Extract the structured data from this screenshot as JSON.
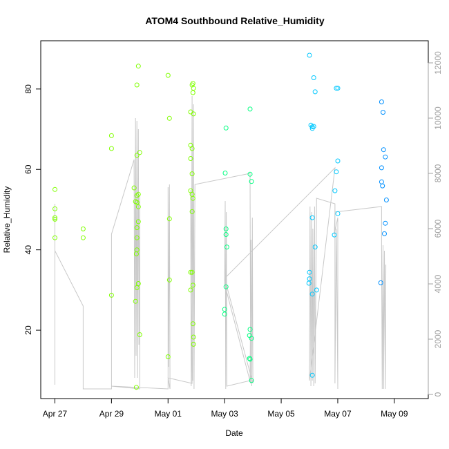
{
  "chart_data": {
    "type": "scatter",
    "title": "ATOM4 Southbound Relative_Humidity",
    "xlabel": "Date",
    "ylabel": "Relative_Humidity",
    "x_ticks": [
      "Apr 27",
      "Apr 29",
      "May 01",
      "May 03",
      "May 05",
      "May 07",
      "May 09"
    ],
    "x_tick_days": [
      0,
      2,
      4,
      6,
      8,
      10,
      12
    ],
    "xlim_days": [
      -0.5,
      13.2
    ],
    "y_ticks": [
      20,
      40,
      60,
      80
    ],
    "ylim": [
      3,
      92
    ],
    "y2_ticks": [
      "0",
      "2000",
      "4000",
      "6000",
      "8000",
      "10000",
      "12000"
    ],
    "y2_tick_values": [
      0,
      2000,
      4000,
      6000,
      8000,
      10000,
      12000
    ],
    "y2lim": [
      -150,
      12800
    ],
    "colors": {
      "points_early": "#80ff00",
      "points_mid": "#00ff80",
      "points_late": "#00c8ff",
      "points_end": "#0090ff",
      "background_line": "#c8c8c8"
    },
    "points": [
      {
        "x": 0.0,
        "y": 55.0
      },
      {
        "x": 0.0,
        "y": 50.2
      },
      {
        "x": 0.0,
        "y": 48.0
      },
      {
        "x": 0.0,
        "y": 47.6
      },
      {
        "x": 0.0,
        "y": 43.0
      },
      {
        "x": 1.0,
        "y": 45.2
      },
      {
        "x": 1.0,
        "y": 43.0
      },
      {
        "x": 2.0,
        "y": 68.4
      },
      {
        "x": 2.0,
        "y": 65.2
      },
      {
        "x": 2.0,
        "y": 28.7
      },
      {
        "x": 2.8,
        "y": 55.4
      },
      {
        "x": 2.85,
        "y": 52.0
      },
      {
        "x": 2.85,
        "y": 27.2
      },
      {
        "x": 2.88,
        "y": 39.0
      },
      {
        "x": 2.88,
        "y": 5.8
      },
      {
        "x": 2.9,
        "y": 81.0
      },
      {
        "x": 2.9,
        "y": 63.5
      },
      {
        "x": 2.9,
        "y": 53.5
      },
      {
        "x": 2.9,
        "y": 51.8
      },
      {
        "x": 2.9,
        "y": 45.5
      },
      {
        "x": 2.9,
        "y": 43.0
      },
      {
        "x": 2.9,
        "y": 40.0
      },
      {
        "x": 2.9,
        "y": 30.6
      },
      {
        "x": 2.95,
        "y": 85.7
      },
      {
        "x": 2.95,
        "y": 53.8
      },
      {
        "x": 2.95,
        "y": 50.7
      },
      {
        "x": 2.95,
        "y": 47.0
      },
      {
        "x": 2.95,
        "y": 31.6
      },
      {
        "x": 3.0,
        "y": 64.2
      },
      {
        "x": 3.0,
        "y": 18.9
      },
      {
        "x": 4.0,
        "y": 83.4
      },
      {
        "x": 4.05,
        "y": 72.7
      },
      {
        "x": 4.05,
        "y": 47.7
      },
      {
        "x": 4.05,
        "y": 32.5
      },
      {
        "x": 4.0,
        "y": 13.4
      },
      {
        "x": 4.8,
        "y": 74.3
      },
      {
        "x": 4.8,
        "y": 66.0
      },
      {
        "x": 4.8,
        "y": 62.7
      },
      {
        "x": 4.8,
        "y": 54.7
      },
      {
        "x": 4.8,
        "y": 34.4
      },
      {
        "x": 4.8,
        "y": 30.0
      },
      {
        "x": 4.85,
        "y": 81.0
      },
      {
        "x": 4.85,
        "y": 65.2
      },
      {
        "x": 4.85,
        "y": 58.9
      },
      {
        "x": 4.85,
        "y": 53.8
      },
      {
        "x": 4.85,
        "y": 49.5
      },
      {
        "x": 4.85,
        "y": 34.4
      },
      {
        "x": 4.88,
        "y": 81.4
      },
      {
        "x": 4.88,
        "y": 79.1
      },
      {
        "x": 4.88,
        "y": 52.8
      },
      {
        "x": 4.88,
        "y": 31.2
      },
      {
        "x": 4.88,
        "y": 21.6
      },
      {
        "x": 4.9,
        "y": 80.2
      },
      {
        "x": 4.9,
        "y": 73.8
      },
      {
        "x": 4.9,
        "y": 18.3
      },
      {
        "x": 4.9,
        "y": 16.5
      },
      {
        "x": 6.05,
        "y": 70.3
      },
      {
        "x": 6.02,
        "y": 59.1
      },
      {
        "x": 6.05,
        "y": 45.2
      },
      {
        "x": 6.05,
        "y": 43.8
      },
      {
        "x": 6.08,
        "y": 40.7
      },
      {
        "x": 6.05,
        "y": 30.8
      },
      {
        "x": 6.0,
        "y": 25.2
      },
      {
        "x": 6.0,
        "y": 24.0
      },
      {
        "x": 6.9,
        "y": 75.0
      },
      {
        "x": 6.9,
        "y": 58.8
      },
      {
        "x": 6.95,
        "y": 57.0
      },
      {
        "x": 6.9,
        "y": 20.2
      },
      {
        "x": 6.88,
        "y": 18.7
      },
      {
        "x": 6.95,
        "y": 18.0
      },
      {
        "x": 6.88,
        "y": 13.0
      },
      {
        "x": 6.9,
        "y": 12.8
      },
      {
        "x": 6.95,
        "y": 7.5
      },
      {
        "x": 9.0,
        "y": 88.4
      },
      {
        "x": 9.05,
        "y": 71.0
      },
      {
        "x": 9.1,
        "y": 70.6
      },
      {
        "x": 9.15,
        "y": 70.7
      },
      {
        "x": 9.1,
        "y": 70.2
      },
      {
        "x": 9.15,
        "y": 82.8
      },
      {
        "x": 9.2,
        "y": 79.3
      },
      {
        "x": 9.2,
        "y": 40.7
      },
      {
        "x": 9.25,
        "y": 30.0
      },
      {
        "x": 9.1,
        "y": 48.0
      },
      {
        "x": 9.0,
        "y": 34.4
      },
      {
        "x": 9.0,
        "y": 32.8
      },
      {
        "x": 8.98,
        "y": 31.7
      },
      {
        "x": 9.1,
        "y": 29.0
      },
      {
        "x": 9.1,
        "y": 8.8
      },
      {
        "x": 9.95,
        "y": 80.2
      },
      {
        "x": 10.0,
        "y": 80.2
      },
      {
        "x": 10.0,
        "y": 62.1
      },
      {
        "x": 9.95,
        "y": 59.4
      },
      {
        "x": 9.9,
        "y": 54.7
      },
      {
        "x": 10.0,
        "y": 49.0
      },
      {
        "x": 9.88,
        "y": 43.7
      },
      {
        "x": 11.55,
        "y": 76.8
      },
      {
        "x": 11.6,
        "y": 74.2
      },
      {
        "x": 11.62,
        "y": 64.9
      },
      {
        "x": 11.68,
        "y": 63.1
      },
      {
        "x": 11.55,
        "y": 60.4
      },
      {
        "x": 11.55,
        "y": 56.9
      },
      {
        "x": 11.58,
        "y": 55.9
      },
      {
        "x": 11.72,
        "y": 52.4
      },
      {
        "x": 11.68,
        "y": 46.6
      },
      {
        "x": 11.65,
        "y": 44.0
      },
      {
        "x": 11.52,
        "y": 31.8
      }
    ],
    "background_series": [
      {
        "x": 0.0,
        "y2": 6900
      },
      {
        "x": 0.0,
        "y2": 350
      },
      {
        "x": 0.0,
        "y2": 5200
      },
      {
        "x": 1.0,
        "y2": 3200
      },
      {
        "x": 1.0,
        "y2": 200
      },
      {
        "x": 2.0,
        "y2": 200
      },
      {
        "x": 2.0,
        "y2": 5800
      },
      {
        "x": 2.8,
        "y2": 8500
      },
      {
        "x": 2.82,
        "y2": 600
      },
      {
        "x": 2.85,
        "y2": 10000
      },
      {
        "x": 2.87,
        "y2": 1400
      },
      {
        "x": 2.9,
        "y2": 9900
      },
      {
        "x": 2.92,
        "y2": 600
      },
      {
        "x": 2.95,
        "y2": 9600
      },
      {
        "x": 2.97,
        "y2": 1800
      },
      {
        "x": 3.0,
        "y2": 7200
      },
      {
        "x": 3.0,
        "y2": 200
      },
      {
        "x": 2.0,
        "y2": 300
      },
      {
        "x": 4.0,
        "y2": 200
      },
      {
        "x": 4.0,
        "y2": 7500
      },
      {
        "x": 4.02,
        "y2": 1000
      },
      {
        "x": 4.05,
        "y2": 7600
      },
      {
        "x": 4.07,
        "y2": 200
      },
      {
        "x": 4.0,
        "y2": 600
      },
      {
        "x": 4.85,
        "y2": 400
      },
      {
        "x": 4.8,
        "y2": 7400
      },
      {
        "x": 4.82,
        "y2": 300
      },
      {
        "x": 4.85,
        "y2": 10800
      },
      {
        "x": 4.87,
        "y2": 500
      },
      {
        "x": 4.9,
        "y2": 10500
      },
      {
        "x": 4.92,
        "y2": 200
      },
      {
        "x": 4.95,
        "y2": 7600
      },
      {
        "x": 6.9,
        "y2": 8000
      },
      {
        "x": 6.92,
        "y2": 400
      },
      {
        "x": 6.0,
        "y2": 4000
      },
      {
        "x": 6.02,
        "y2": 7000
      },
      {
        "x": 6.04,
        "y2": 200
      },
      {
        "x": 6.06,
        "y2": 6600
      },
      {
        "x": 6.08,
        "y2": 300
      },
      {
        "x": 6.9,
        "y2": 500
      },
      {
        "x": 6.93,
        "y2": 5600
      },
      {
        "x": 6.96,
        "y2": 300
      },
      {
        "x": 6.98,
        "y2": 6400
      },
      {
        "x": 7.0,
        "y2": 400
      },
      {
        "x": 6.0,
        "y2": 4200
      },
      {
        "x": 9.9,
        "y2": 8200
      },
      {
        "x": 9.0,
        "y2": 500
      },
      {
        "x": 9.02,
        "y2": 6800
      },
      {
        "x": 9.05,
        "y2": 300
      },
      {
        "x": 9.08,
        "y2": 6600
      },
      {
        "x": 9.1,
        "y2": 500
      },
      {
        "x": 9.12,
        "y2": 6000
      },
      {
        "x": 9.15,
        "y2": 300
      },
      {
        "x": 9.18,
        "y2": 6800
      },
      {
        "x": 9.2,
        "y2": 400
      },
      {
        "x": 9.25,
        "y2": 7100
      },
      {
        "x": 9.9,
        "y2": 6900
      },
      {
        "x": 9.9,
        "y2": 400
      },
      {
        "x": 9.95,
        "y2": 6000
      },
      {
        "x": 10.0,
        "y2": 200
      },
      {
        "x": 10.0,
        "y2": 6400
      },
      {
        "x": 9.88,
        "y2": 5800
      },
      {
        "x": 9.9,
        "y2": 6600
      },
      {
        "x": 11.55,
        "y2": 6800
      },
      {
        "x": 11.55,
        "y2": 5300
      },
      {
        "x": 11.57,
        "y2": 200
      },
      {
        "x": 11.6,
        "y2": 5400
      },
      {
        "x": 11.62,
        "y2": 200
      },
      {
        "x": 11.65,
        "y2": 5200
      },
      {
        "x": 11.68,
        "y2": 200
      },
      {
        "x": 11.7,
        "y2": 4700
      }
    ]
  }
}
